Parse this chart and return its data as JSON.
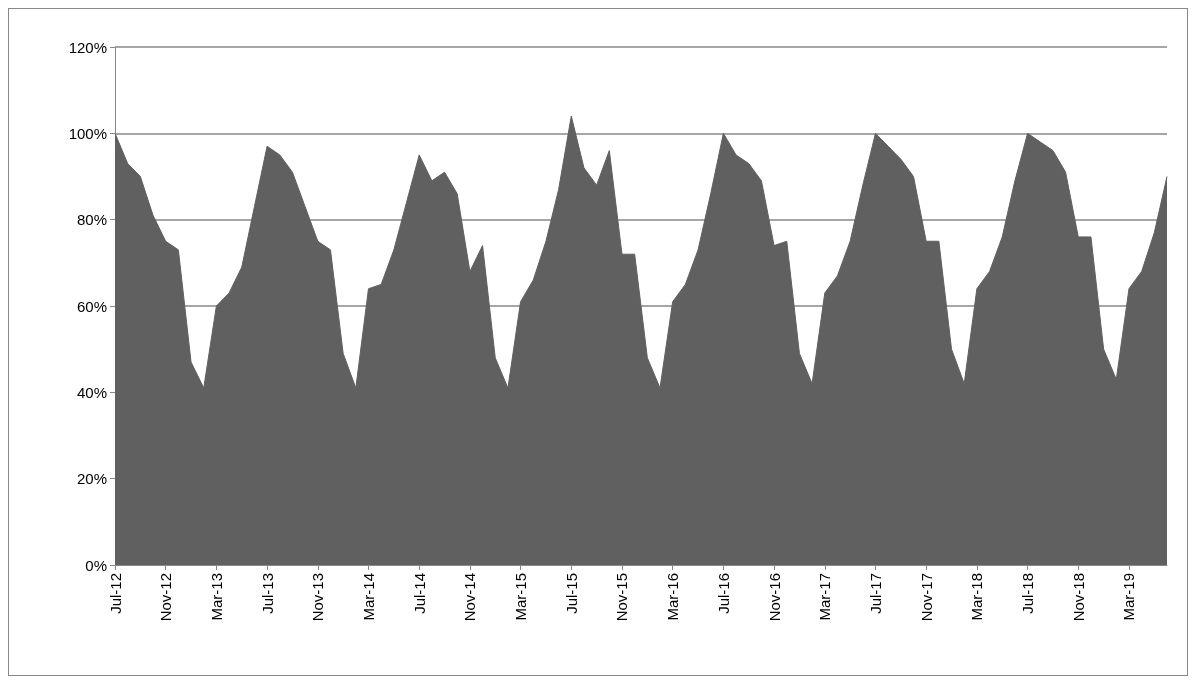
{
  "chart_data": {
    "type": "area",
    "categories": [
      "Jul-12",
      null,
      null,
      null,
      "Nov-12",
      null,
      null,
      null,
      "Mar-13",
      null,
      null,
      null,
      "Jul-13",
      null,
      null,
      null,
      "Nov-13",
      null,
      null,
      null,
      "Mar-14",
      null,
      null,
      null,
      "Jul-14",
      null,
      null,
      null,
      "Nov-14",
      null,
      null,
      null,
      "Mar-15",
      null,
      null,
      null,
      "Jul-15",
      null,
      null,
      null,
      "Nov-15",
      null,
      null,
      null,
      "Mar-16",
      null,
      null,
      null,
      "Jul-16",
      null,
      null,
      null,
      "Nov-16",
      null,
      null,
      null,
      "Mar-17",
      null,
      null,
      null,
      "Jul-17",
      null,
      null,
      null,
      "Nov-17",
      null,
      null,
      null,
      "Mar-18",
      null,
      null,
      null,
      "Jul-18",
      null,
      null,
      null,
      "Nov-18",
      null,
      null,
      null,
      "Mar-19",
      null,
      null,
      null
    ],
    "series": [
      {
        "color": "#606060",
        "values": [
          100,
          93,
          90,
          81,
          75,
          73,
          47,
          41,
          60,
          63,
          69,
          83,
          97,
          95,
          91,
          83,
          75,
          73,
          49,
          41,
          64,
          65,
          73,
          84,
          95,
          89,
          91,
          86,
          68,
          74,
          48,
          41,
          61,
          66,
          75,
          87,
          104,
          92,
          88,
          96,
          72,
          72,
          48,
          41,
          61,
          65,
          73,
          86,
          100,
          95,
          93,
          89,
          74,
          75,
          49,
          42,
          63,
          67,
          75,
          88,
          100,
          97,
          94,
          90,
          75,
          75,
          50,
          42,
          64,
          68,
          76,
          89,
          100,
          98,
          96,
          91,
          76,
          76,
          50,
          43,
          64,
          68,
          77,
          90
        ]
      }
    ],
    "ylim": [
      0,
      120
    ],
    "yticks": [
      {
        "value": 0,
        "label": "0%"
      },
      {
        "value": 20,
        "label": "20%"
      },
      {
        "value": 40,
        "label": "40%"
      },
      {
        "value": 60,
        "label": "60%"
      },
      {
        "value": 80,
        "label": "80%"
      },
      {
        "value": 100,
        "label": "100%"
      },
      {
        "value": 120,
        "label": "120%"
      }
    ],
    "grid": "y"
  }
}
